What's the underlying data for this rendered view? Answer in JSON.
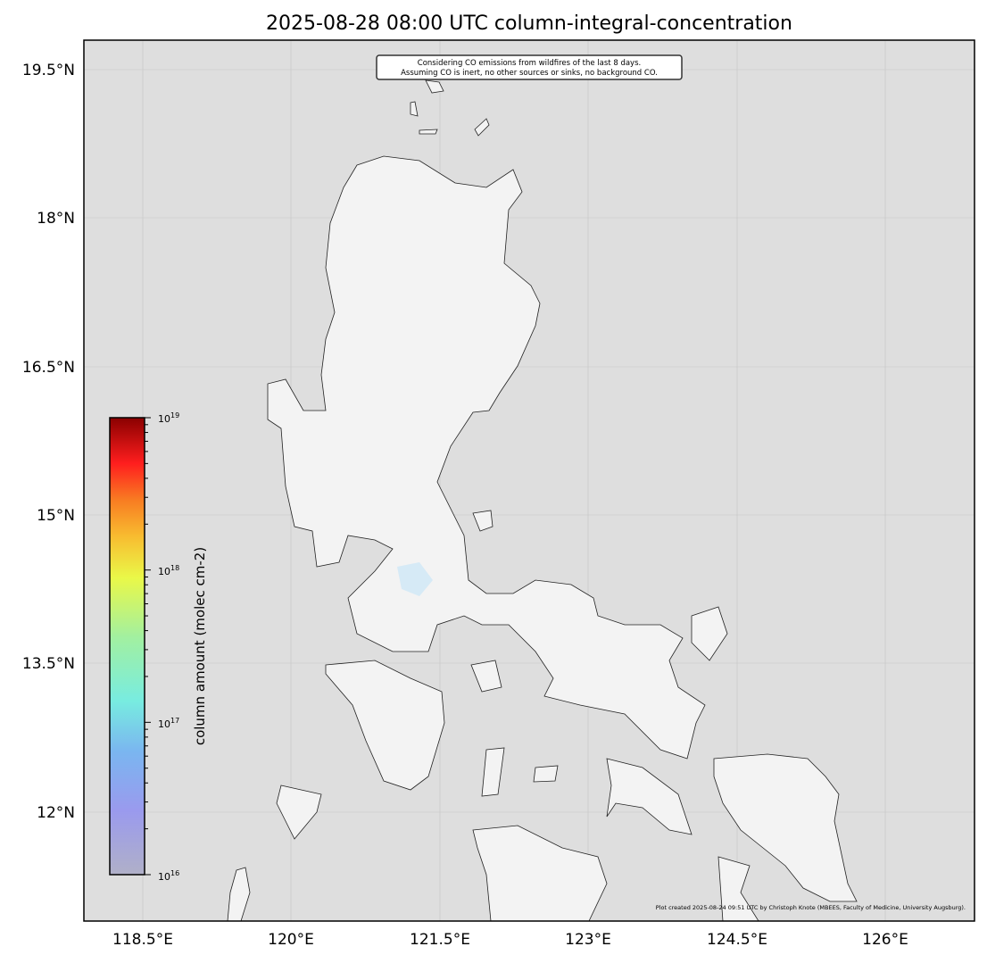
{
  "title": "2025-08-28 08:00 UTC column-integral-concentration",
  "note_lines": [
    "Considering CO emissions from wildfires of the last 8 days.",
    "Assuming CO is inert, no other sources or sinks, no background CO."
  ],
  "credit": "Plot created 2025-08-24 09:51 UTC by Christoph Knote (MBEES, Faculty of Medicine, University Augsburg).",
  "map": {
    "lon_ticks": [
      "118.5°E",
      "120°E",
      "121.5°E",
      "123°E",
      "124.5°E",
      "126°E"
    ],
    "lat_ticks": [
      "19.5°N",
      "18°N",
      "16.5°N",
      "15°N",
      "13.5°N",
      "12°N"
    ],
    "ocean_color": "#dedede",
    "land_color": "#f2f2f2",
    "gridlines": true
  },
  "colorbar": {
    "label": "column amount (molec cm-2)",
    "scale": "log",
    "range": [
      1e+16,
      1e+19
    ],
    "tick_labels": [
      {
        "base": "10",
        "exp": "16"
      },
      {
        "base": "10",
        "exp": "17"
      },
      {
        "base": "10",
        "exp": "18"
      },
      {
        "base": "10",
        "exp": "19"
      }
    ],
    "colors": [
      "#b0b0c8",
      "#9a9aee",
      "#7ab6f0",
      "#78ece0",
      "#a2f0a0",
      "#eaf848",
      "#f8bc30",
      "#f87c22",
      "#ff1e1e",
      "#8a0000"
    ]
  }
}
